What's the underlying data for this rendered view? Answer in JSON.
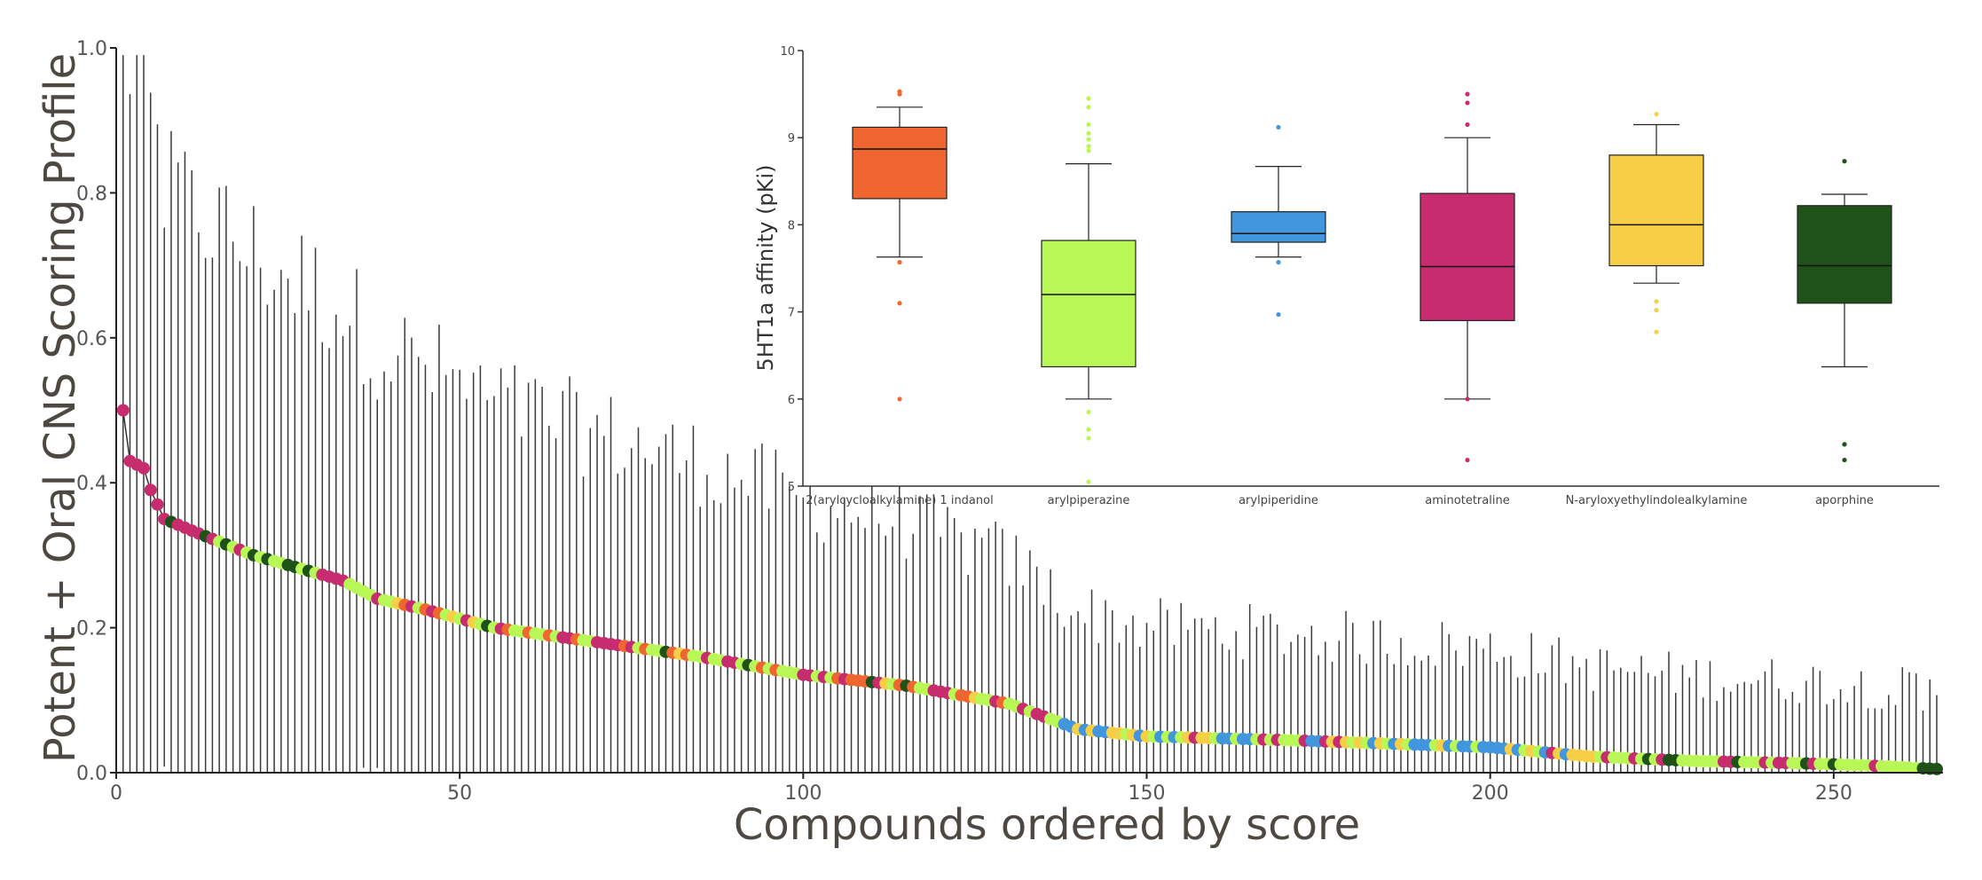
{
  "main_chart": {
    "title": "",
    "xlabel": "Compounds ordered by score",
    "ylabel": "Potent + Oral CNS Scoring Profile",
    "x_ticks": [
      "0",
      "50",
      "100",
      "150",
      "200",
      "250"
    ],
    "y_ticks": [
      "0.0",
      "0.2",
      "0.4",
      "0.6",
      "0.8",
      "1.0"
    ]
  },
  "inset_chart": {
    "ylabel": "5HT1a affinity (pKi)",
    "y_ticks": [
      "5",
      "6",
      "7",
      "8",
      "9",
      "10"
    ]
  },
  "chart_data": [
    {
      "type": "scatter",
      "xlabel": "Compounds ordered by score",
      "ylabel": "Potent + Oral CNS Scoring Profile",
      "xlim": [
        0,
        265
      ],
      "ylim": [
        0,
        1.0
      ],
      "n_points": 265,
      "error_bars": true,
      "series_colors": {
        "2(arylcycloalkylamine) 1 indanol": "#f06630",
        "arylpiperazine": "#b9f756",
        "arylpiperidine": "#4196de",
        "aminotetraline": "#c62c6e",
        "N-aryloxyethylindolealkylamine": "#f7cf46",
        "aporphine": "#1e5218"
      },
      "score_trend": [
        {
          "x": 1,
          "y": 0.5
        },
        {
          "x": 2,
          "y": 0.43
        },
        {
          "x": 4,
          "y": 0.42
        },
        {
          "x": 5,
          "y": 0.39
        },
        {
          "x": 7,
          "y": 0.35
        },
        {
          "x": 12,
          "y": 0.33
        },
        {
          "x": 20,
          "y": 0.3
        },
        {
          "x": 33,
          "y": 0.265
        },
        {
          "x": 38,
          "y": 0.24
        },
        {
          "x": 45,
          "y": 0.225
        },
        {
          "x": 55,
          "y": 0.2
        },
        {
          "x": 70,
          "y": 0.18
        },
        {
          "x": 85,
          "y": 0.16
        },
        {
          "x": 100,
          "y": 0.135
        },
        {
          "x": 115,
          "y": 0.12
        },
        {
          "x": 130,
          "y": 0.095
        },
        {
          "x": 140,
          "y": 0.06
        },
        {
          "x": 150,
          "y": 0.05
        },
        {
          "x": 170,
          "y": 0.045
        },
        {
          "x": 185,
          "y": 0.04
        },
        {
          "x": 200,
          "y": 0.035
        },
        {
          "x": 215,
          "y": 0.022
        },
        {
          "x": 230,
          "y": 0.016
        },
        {
          "x": 245,
          "y": 0.013
        },
        {
          "x": 255,
          "y": 0.01
        },
        {
          "x": 265,
          "y": 0.005
        }
      ]
    },
    {
      "type": "box",
      "ylabel": "5HT1a affinity (pKi)",
      "ylim": [
        5,
        10
      ],
      "categories": [
        "2(arylcycloalkylamine) 1 indanol",
        "arylpiperazine",
        "arylpiperidine",
        "aminotetraline",
        "N-aryloxyethylindolealkylamine",
        "aporphine"
      ],
      "boxes": [
        {
          "color": "#f06630",
          "whisker_low": 7.63,
          "q1": 8.3,
          "median": 8.87,
          "q3": 9.12,
          "whisker_high": 9.35,
          "outliers": [
            9.53,
            9.5,
            7.57,
            7.1,
            6.0
          ]
        },
        {
          "color": "#b9f756",
          "whisker_low": 6.0,
          "q1": 6.37,
          "median": 7.2,
          "q3": 7.82,
          "whisker_high": 8.7,
          "outliers": [
            9.45,
            9.35,
            9.15,
            9.05,
            8.98,
            8.9,
            8.85,
            5.85,
            5.65,
            5.55,
            5.05
          ]
        },
        {
          "color": "#4196de",
          "whisker_low": 7.63,
          "q1": 7.8,
          "median": 7.9,
          "q3": 8.15,
          "whisker_high": 8.67,
          "outliers": [
            9.12,
            7.57,
            6.97
          ]
        },
        {
          "color": "#c62c6e",
          "whisker_low": 6.0,
          "q1": 6.9,
          "median": 7.52,
          "q3": 8.36,
          "whisker_high": 9.0,
          "outliers": [
            9.5,
            9.4,
            9.15,
            6.0,
            5.3
          ]
        },
        {
          "color": "#f7cf46",
          "whisker_low": 7.33,
          "q1": 7.53,
          "median": 8.0,
          "q3": 8.8,
          "whisker_high": 9.15,
          "outliers": [
            9.27,
            7.12,
            7.02,
            6.77
          ]
        },
        {
          "color": "#1e5218",
          "whisker_low": 6.37,
          "q1": 7.1,
          "median": 7.53,
          "q3": 8.22,
          "whisker_high": 8.35,
          "outliers": [
            8.73,
            5.48,
            5.3
          ]
        }
      ]
    }
  ]
}
